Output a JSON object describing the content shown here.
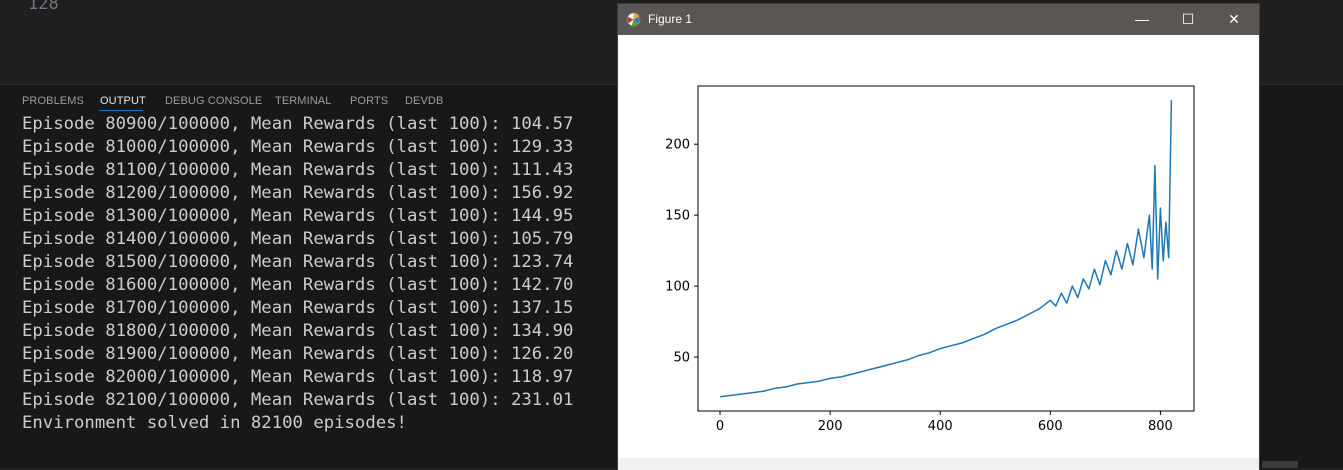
{
  "editor": {
    "line_number": "128"
  },
  "panel": {
    "tabs": [
      {
        "label": "PROBLEMS"
      },
      {
        "label": "OUTPUT",
        "active": true
      },
      {
        "label": "DEBUG CONSOLE"
      },
      {
        "label": "TERMINAL"
      },
      {
        "label": "PORTS"
      },
      {
        "label": "DEVDB"
      }
    ],
    "accent_color": "#0078d4"
  },
  "output": {
    "lines": [
      "Episode 80900/100000, Mean Rewards (last 100): 104.57",
      "Episode 81000/100000, Mean Rewards (last 100): 129.33",
      "Episode 81100/100000, Mean Rewards (last 100): 111.43",
      "Episode 81200/100000, Mean Rewards (last 100): 156.92",
      "Episode 81300/100000, Mean Rewards (last 100): 144.95",
      "Episode 81400/100000, Mean Rewards (last 100): 105.79",
      "Episode 81500/100000, Mean Rewards (last 100): 123.74",
      "Episode 81600/100000, Mean Rewards (last 100): 142.70",
      "Episode 81700/100000, Mean Rewards (last 100): 137.15",
      "Episode 81800/100000, Mean Rewards (last 100): 134.90",
      "Episode 81900/100000, Mean Rewards (last 100): 126.20",
      "Episode 82000/100000, Mean Rewards (last 100): 118.97",
      "Episode 82100/100000, Mean Rewards (last 100): 231.01",
      "Environment solved in 82100 episodes!"
    ]
  },
  "figure_window": {
    "title": "Figure 1",
    "minimize_glyph": "—",
    "maximize_glyph": "☐",
    "close_glyph": "✕"
  },
  "chart_data": {
    "type": "line",
    "title": "",
    "xlabel": "",
    "ylabel": "",
    "xlim": [
      -40,
      861
    ],
    "ylim": [
      12,
      241
    ],
    "x_ticks": [
      0,
      200,
      400,
      600,
      800
    ],
    "y_ticks": [
      50,
      100,
      150,
      200
    ],
    "series_color": "#1f77b4",
    "grid": false,
    "series": [
      {
        "x": [
          0,
          20,
          40,
          60,
          80,
          100,
          120,
          140,
          160,
          180,
          200,
          220,
          240,
          260,
          280,
          300,
          320,
          340,
          360,
          380,
          400,
          420,
          440,
          460,
          480,
          500,
          520,
          540,
          560,
          580,
          600,
          610,
          620,
          630,
          640,
          650,
          660,
          670,
          680,
          690,
          700,
          710,
          720,
          730,
          740,
          750,
          760,
          770,
          780,
          785,
          790,
          795,
          800,
          805,
          810,
          815,
          820
        ],
        "values": [
          22,
          23,
          24,
          25,
          26,
          28,
          29,
          31,
          32,
          33,
          35,
          36,
          38,
          40,
          42,
          44,
          46,
          48,
          51,
          53,
          56,
          58,
          60,
          63,
          66,
          70,
          73,
          76,
          80,
          84,
          90,
          86,
          95,
          88,
          100,
          92,
          105,
          98,
          112,
          101,
          118,
          108,
          125,
          112,
          130,
          115,
          140,
          120,
          150,
          112,
          185,
          105,
          155,
          118,
          145,
          120,
          231
        ]
      }
    ]
  }
}
